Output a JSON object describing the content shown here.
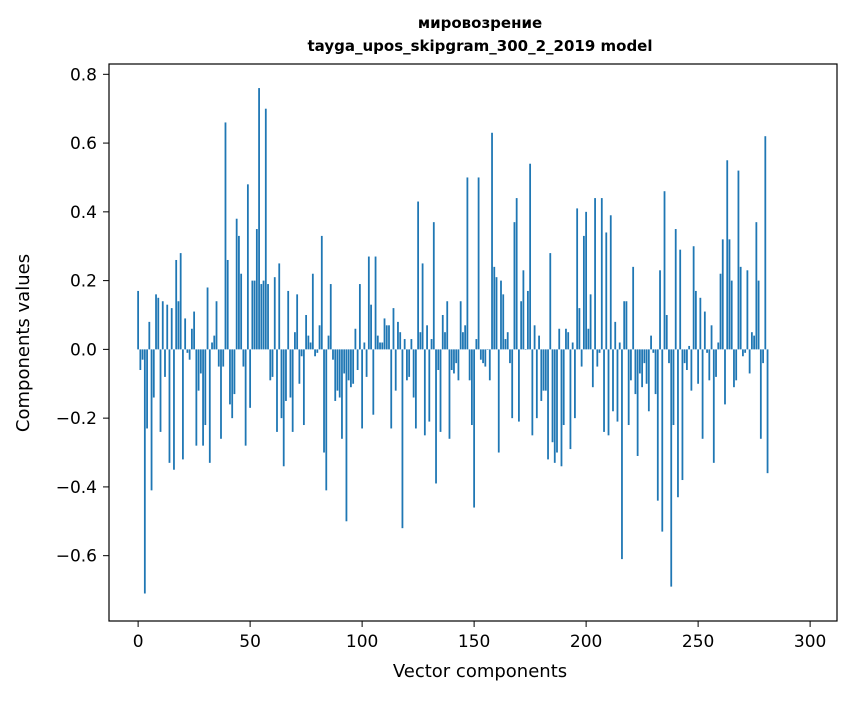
{
  "chart_data": {
    "type": "bar",
    "title": "мировозрение",
    "subtitle": "tayga_upos_skipgram_300_2_2019 model",
    "xlabel": "Vector components",
    "ylabel": "Components values",
    "xlim": [
      -13,
      312
    ],
    "ylim": [
      -0.79,
      0.83
    ],
    "xticks": [
      0,
      50,
      100,
      150,
      200,
      250,
      300
    ],
    "yticks": [
      -0.6,
      -0.4,
      -0.2,
      0.0,
      0.2,
      0.4,
      0.6,
      0.8
    ],
    "ytick_labels": [
      "−0.6",
      "−0.4",
      "−0.2",
      "0.0",
      "0.2",
      "0.4",
      "0.6",
      "0.8"
    ],
    "bar_color": "#1f77b4",
    "grid": false,
    "legend": false,
    "values": [
      0.17,
      -0.06,
      -0.03,
      -0.71,
      -0.23,
      0.08,
      -0.41,
      -0.14,
      0.16,
      0.15,
      -0.24,
      0.14,
      -0.08,
      0.13,
      -0.33,
      0.12,
      -0.35,
      0.26,
      0.14,
      0.28,
      -0.32,
      0.09,
      -0.01,
      -0.03,
      0.06,
      0.11,
      -0.28,
      -0.12,
      -0.07,
      -0.28,
      -0.22,
      0.18,
      -0.33,
      0.02,
      0.04,
      0.14,
      -0.05,
      -0.26,
      -0.05,
      0.66,
      0.26,
      -0.16,
      -0.2,
      -0.13,
      0.38,
      0.33,
      0.22,
      -0.05,
      -0.28,
      0.48,
      -0.17,
      0.2,
      0.2,
      0.35,
      0.76,
      0.19,
      0.2,
      0.7,
      0.19,
      -0.09,
      -0.08,
      0.21,
      -0.24,
      0.25,
      -0.2,
      -0.34,
      -0.15,
      0.17,
      -0.14,
      -0.24,
      0.05,
      0.16,
      -0.1,
      -0.02,
      -0.22,
      0.1,
      0.04,
      0.02,
      0.22,
      -0.02,
      -0.01,
      0.07,
      0.33,
      -0.3,
      -0.41,
      0.04,
      0.19,
      -0.03,
      -0.15,
      -0.12,
      -0.14,
      -0.26,
      -0.07,
      -0.5,
      -0.09,
      -0.11,
      -0.1,
      0.06,
      -0.06,
      0.19,
      -0.23,
      0.02,
      -0.08,
      0.27,
      0.13,
      -0.19,
      0.27,
      0.04,
      0.02,
      0.02,
      0.09,
      0.07,
      0.07,
      -0.23,
      0.12,
      -0.12,
      0.08,
      0.05,
      -0.52,
      0.03,
      -0.09,
      -0.08,
      0.03,
      -0.14,
      -0.23,
      0.43,
      0.05,
      0.25,
      -0.25,
      0.07,
      -0.21,
      0.03,
      0.37,
      -0.39,
      -0.06,
      -0.24,
      0.1,
      0.05,
      0.14,
      -0.26,
      -0.06,
      -0.07,
      -0.04,
      -0.09,
      0.14,
      0.05,
      0.07,
      0.5,
      -0.09,
      -0.22,
      -0.46,
      0.03,
      0.5,
      -0.03,
      -0.04,
      -0.05,
      0.0,
      -0.09,
      0.63,
      0.24,
      0.21,
      -0.3,
      0.2,
      0.16,
      0.03,
      0.05,
      -0.04,
      -0.2,
      0.37,
      0.44,
      -0.21,
      0.14,
      0.23,
      0.0,
      0.17,
      0.54,
      -0.25,
      0.07,
      -0.2,
      0.04,
      -0.15,
      -0.12,
      -0.12,
      -0.32,
      0.28,
      -0.27,
      -0.33,
      -0.3,
      0.06,
      -0.34,
      -0.22,
      0.06,
      0.05,
      -0.29,
      0.02,
      -0.2,
      0.41,
      0.12,
      -0.05,
      0.33,
      0.4,
      0.06,
      0.16,
      -0.11,
      0.44,
      -0.05,
      -0.01,
      0.44,
      -0.24,
      0.34,
      -0.25,
      0.39,
      -0.18,
      0.08,
      -0.21,
      0.02,
      -0.61,
      0.14,
      0.14,
      -0.22,
      -0.09,
      0.24,
      -0.13,
      -0.31,
      -0.07,
      -0.11,
      -0.04,
      -0.1,
      -0.18,
      0.04,
      -0.01,
      -0.13,
      -0.44,
      0.23,
      -0.53,
      0.46,
      0.1,
      -0.04,
      -0.69,
      -0.22,
      0.35,
      -0.43,
      0.29,
      -0.38,
      -0.04,
      -0.06,
      0.01,
      -0.12,
      0.3,
      0.17,
      -0.1,
      0.15,
      -0.26,
      0.11,
      -0.01,
      -0.09,
      0.07,
      -0.33,
      -0.08,
      0.02,
      0.22,
      0.32,
      -0.16,
      0.55,
      0.32,
      0.2,
      -0.11,
      -0.09,
      0.52,
      0.24,
      -0.02,
      -0.01,
      0.23,
      -0.07,
      0.05,
      0.04,
      0.37,
      0.2,
      -0.26,
      -0.04,
      0.62,
      -0.36
    ]
  }
}
